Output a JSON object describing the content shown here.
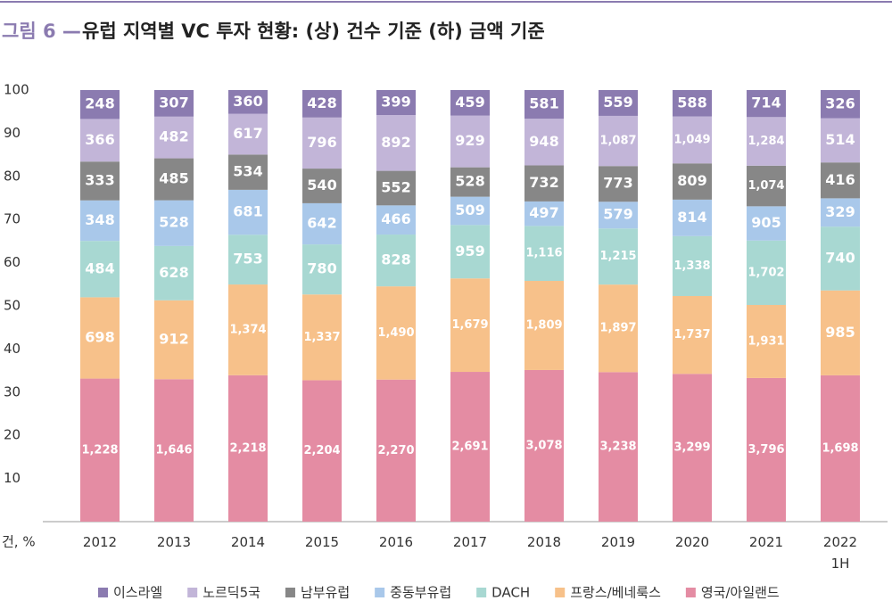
{
  "chart_data": {
    "type": "bar",
    "stacked": "percent",
    "title_prefix": "그림 6 —",
    "title": "유럽 지역별 VC 투자 현황: (상) 건수 기준 (하) 금액 기준",
    "y_unit_label": "건, %",
    "categories": [
      "2012",
      "2013",
      "2014",
      "2015",
      "2016",
      "2017",
      "2018",
      "2019",
      "2020",
      "2021",
      "2022\n1H"
    ],
    "ylim": [
      0,
      100
    ],
    "yticks": [
      10,
      20,
      30,
      40,
      50,
      60,
      70,
      80,
      90,
      100
    ],
    "series": [
      {
        "name": "이스라엘",
        "color": "#8b7bb0",
        "values": [
          248,
          307,
          360,
          428,
          399,
          459,
          581,
          559,
          588,
          714,
          326
        ],
        "value_labels": [
          "248",
          "307",
          "360",
          "428",
          "399",
          "459",
          "581",
          "559",
          "588",
          "714",
          "326"
        ]
      },
      {
        "name": "노르딕5국",
        "color": "#c2b5d8",
        "values": [
          366,
          482,
          617,
          796,
          892,
          929,
          948,
          1087,
          1049,
          1284,
          514
        ],
        "value_labels": [
          "366",
          "482",
          "617",
          "796",
          "892",
          "929",
          "948",
          "1,087",
          "1,049",
          "1,284",
          "514"
        ]
      },
      {
        "name": "남부유럽",
        "color": "#878787",
        "values": [
          333,
          485,
          534,
          540,
          552,
          528,
          732,
          773,
          809,
          1074,
          416
        ],
        "value_labels": [
          "333",
          "485",
          "534",
          "540",
          "552",
          "528",
          "732",
          "773",
          "809",
          "1,074",
          "416"
        ]
      },
      {
        "name": "중동부유럽",
        "color": "#a9c8ea",
        "values": [
          348,
          528,
          681,
          642,
          466,
          509,
          497,
          579,
          814,
          905,
          329
        ],
        "value_labels": [
          "348",
          "528",
          "681",
          "642",
          "466",
          "509",
          "497",
          "579",
          "814",
          "905",
          "329"
        ]
      },
      {
        "name": "DACH",
        "color": "#a8d8d2",
        "values": [
          484,
          628,
          753,
          780,
          828,
          959,
          1116,
          1215,
          1338,
          1702,
          740
        ],
        "value_labels": [
          "484",
          "628",
          "753",
          "780",
          "828",
          "959",
          "1,116",
          "1,215",
          "1,338",
          "1,702",
          "740"
        ]
      },
      {
        "name": "프랑스/베네룩스",
        "color": "#f7c18a",
        "values": [
          698,
          912,
          1374,
          1337,
          1490,
          1679,
          1809,
          1897,
          1737,
          1931,
          985
        ],
        "value_labels": [
          "698",
          "912",
          "1,374",
          "1,337",
          "1,490",
          "1,679",
          "1,809",
          "1,897",
          "1,737",
          "1,931",
          "985"
        ]
      },
      {
        "name": "영국/아일랜드",
        "color": "#e48ca3",
        "values": [
          1228,
          1646,
          2218,
          2204,
          2270,
          2691,
          3078,
          3238,
          3299,
          3796,
          1698
        ],
        "value_labels": [
          "1,228",
          "1,646",
          "2,218",
          "2,204",
          "2,270",
          "2,691",
          "3,078",
          "3,238",
          "3,299",
          "3,796",
          "1,698"
        ]
      }
    ]
  }
}
